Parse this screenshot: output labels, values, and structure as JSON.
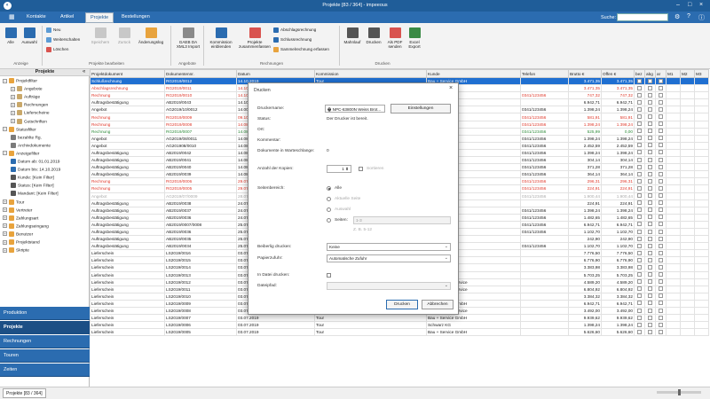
{
  "window": {
    "title": "Projekte [83 / 364] - impeeous"
  },
  "menu": {
    "tabs": [
      "Kontakte",
      "Artikel",
      "Projekte",
      "Bestellungen"
    ],
    "active_index": 2,
    "search_label": "Suche:"
  },
  "ribbon": {
    "buttons": {
      "alle": "Alle",
      "auswahl": "Auswahl",
      "neu": "Neu",
      "weiterschalten": "Weiterschalten",
      "loeschen": "Löschen",
      "speichern": "Speichern",
      "zurueck": "Zurück",
      "aenderungslog": "Änderungslog",
      "gaeb": "GAEB DA XML3 Import",
      "kommissionen": "Kommission einblenden",
      "projekte_zusammenfassen": "Projekte zusammenfassen",
      "abschlagsrechnung": "Abschlagsrechnung",
      "schlussrechnung": "Schlussrechnung",
      "sammelrechnung": "Sammelrechnung erfassen",
      "mahnlauf": "Mahnlauf",
      "drucken": "Drucken",
      "als_pdf": "Als PDF senden",
      "excel": "Excel Export"
    },
    "groups": {
      "anzeige": "Anzeige",
      "bearbeiten": "Projekte bearbeiten",
      "angebote": "Angebote",
      "rechnungen": "Rechnungen",
      "drucken": "Drucken"
    }
  },
  "sidebar": {
    "title": "Projekte",
    "tree": [
      {
        "label": "Projektfilter",
        "indent": 0,
        "toggle": "−",
        "icon": "folder"
      },
      {
        "label": "Angebote",
        "indent": 1,
        "toggle": "+",
        "icon": "doc"
      },
      {
        "label": "Aufträge",
        "indent": 1,
        "toggle": "+",
        "icon": "doc"
      },
      {
        "label": "Rechnungen",
        "indent": 1,
        "toggle": "+",
        "icon": "doc"
      },
      {
        "label": "Lieferscheine",
        "indent": 1,
        "toggle": "+",
        "icon": "doc"
      },
      {
        "label": "Gutschriften",
        "indent": 1,
        "toggle": "+",
        "icon": "doc"
      },
      {
        "label": "Statusfilter",
        "indent": 0,
        "toggle": "−",
        "icon": "folder"
      },
      {
        "label": "bezahlte Rg.",
        "indent": 1,
        "toggle": "",
        "icon": "check"
      },
      {
        "label": "Archivdokumente",
        "indent": 1,
        "toggle": "",
        "icon": "check"
      },
      {
        "label": "Anzeigefilter",
        "indent": 0,
        "toggle": "−",
        "icon": "folder"
      },
      {
        "label": "Datum ab: 01.01.2019",
        "indent": 1,
        "toggle": "",
        "icon": "cal"
      },
      {
        "label": "Datum bis: 14.10.2019",
        "indent": 1,
        "toggle": "",
        "icon": "cal"
      },
      {
        "label": "Kunde: [Kein Filter]",
        "indent": 1,
        "toggle": "",
        "icon": "user"
      },
      {
        "label": "Status: [Kein Filter]",
        "indent": 1,
        "toggle": "",
        "icon": "user"
      },
      {
        "label": "Mandant: [Kein Filter]",
        "indent": 1,
        "toggle": "",
        "icon": "user"
      },
      {
        "label": "Tour",
        "indent": 0,
        "toggle": "+",
        "icon": "folder"
      },
      {
        "label": "Vertreter",
        "indent": 0,
        "toggle": "+",
        "icon": "folder"
      },
      {
        "label": "Zahlungsart",
        "indent": 0,
        "toggle": "+",
        "icon": "folder"
      },
      {
        "label": "Zahlungseingang",
        "indent": 0,
        "toggle": "+",
        "icon": "folder"
      },
      {
        "label": "Benutzer",
        "indent": 0,
        "toggle": "+",
        "icon": "folder"
      },
      {
        "label": "Projektstand",
        "indent": 0,
        "toggle": "+",
        "icon": "folder"
      },
      {
        "label": "Skripte",
        "indent": 0,
        "toggle": "+",
        "icon": "folder"
      }
    ],
    "nav": [
      "Produktion",
      "Projekte",
      "Rechnungen",
      "Touren",
      "Zeiten"
    ],
    "nav_active": 1
  },
  "grid": {
    "columns": [
      "Projektdokument",
      "Dokumentennr.",
      "Datum",
      "Kommission",
      "Kunde",
      "Telefon",
      "Brutto €",
      "Offen €",
      "bez",
      "abg",
      "ar",
      "M1",
      "M2",
      "M3"
    ],
    "rows": [
      {
        "style": "sel",
        "cells": [
          "Schlußrechnung",
          "RG2019/0012",
          "14.10.2019",
          "Tour",
          "Bau + Service GmbH",
          "",
          "3.471,35",
          "3.471,35"
        ]
      },
      {
        "style": "red",
        "cells": [
          "Abschlagsrechnung",
          "RG2019/0011",
          "14.10.",
          "",
          "",
          "",
          "3.471,35",
          "3.471,35"
        ]
      },
      {
        "style": "red",
        "cells": [
          "Rechnung",
          "RG2019/0010",
          "14.10.",
          "",
          "mann",
          "0341/123456",
          "747,32",
          "747,32"
        ]
      },
      {
        "style": "",
        "cells": [
          "Auftragsbestätigung",
          "AB2019/0043",
          "14.10.",
          "",
          "",
          "",
          "6.942,71",
          "6.942,71"
        ]
      },
      {
        "style": "",
        "cells": [
          "Angebot",
          "AG2019/10/0012",
          "14.00.",
          "",
          "mann",
          "0341/123456",
          "1.398,24",
          "1.398,24"
        ]
      },
      {
        "style": "red",
        "cells": [
          "Rechnung",
          "RG2019/0009",
          "09.10.",
          "",
          "mann",
          "0341/123456",
          "581,91",
          "581,91"
        ]
      },
      {
        "style": "red",
        "cells": [
          "Rechnung",
          "RG2019/0008",
          "14.08.",
          "",
          "mann",
          "0341/123456",
          "1.398,24",
          "1.398,24"
        ]
      },
      {
        "style": "green",
        "cells": [
          "Rechnung",
          "RG2019/0007",
          "14.08.",
          "",
          "mann",
          "0341/123456",
          "525,99",
          "0,00"
        ]
      },
      {
        "style": "",
        "cells": [
          "Angebot",
          "AG2019/08/0011",
          "14.08.",
          "",
          "mann",
          "0341/123456",
          "1.398,24",
          "1.398,24"
        ]
      },
      {
        "style": "",
        "cells": [
          "Angebot",
          "AG201908/0010",
          "14.08.",
          "",
          "mann",
          "0341/123456",
          "2.452,59",
          "2.452,59"
        ]
      },
      {
        "style": "",
        "cells": [
          "Auftragsbestätigung",
          "AB2019/0042",
          "14.08.",
          "",
          "mann",
          "0341/123456",
          "1.398,24",
          "1.398,24"
        ]
      },
      {
        "style": "",
        "cells": [
          "Auftragsbestätigung",
          "AB2019/0041",
          "14.08.",
          "",
          "mann",
          "0341/123456",
          "304,14",
          "304,14"
        ]
      },
      {
        "style": "",
        "cells": [
          "Auftragsbestätigung",
          "AB2019/0040",
          "14.08.",
          "",
          "mann",
          "0341/123456",
          "371,28",
          "371,28"
        ]
      },
      {
        "style": "",
        "cells": [
          "Auftragsbestätigung",
          "AB2019/0039",
          "14.08.",
          "",
          "mann",
          "0341/123456",
          "364,14",
          "364,14"
        ]
      },
      {
        "style": "red",
        "cells": [
          "Rechnung",
          "RG2019/0006",
          "29.07.",
          "",
          "mann",
          "0341/123456",
          "296,31",
          "296,31"
        ]
      },
      {
        "style": "red",
        "cells": [
          "Rechnung",
          "RG2019/0005",
          "29.07.",
          "",
          "mann",
          "0341/123456",
          "224,91",
          "224,91"
        ]
      },
      {
        "style": "gray",
        "cells": [
          "Angebot",
          "AG2019/07/0009",
          "28.07.",
          "",
          "mann",
          "0341/123456",
          "1.900,44",
          "1.900,44"
        ]
      },
      {
        "style": "",
        "cells": [
          "Auftragsbestätigung",
          "AB2019/0038",
          "24.07.",
          "",
          "",
          "",
          "224,91",
          "224,91"
        ]
      },
      {
        "style": "",
        "cells": [
          "Auftragsbestätigung",
          "AB2019/0037",
          "24.07.",
          "",
          "mann",
          "0341/123456",
          "1.398,24",
          "1.398,24"
        ]
      },
      {
        "style": "",
        "cells": [
          "Auftragsbestätigung",
          "AB2019/0036",
          "24.07.",
          "",
          "mann",
          "0341/123456",
          "1.482,65",
          "1.482,65"
        ]
      },
      {
        "style": "",
        "cells": [
          "Auftragsbestätigung",
          "AB2019/0007/0008",
          "25.07.",
          "",
          "mann",
          "0341/123456",
          "6.942,71",
          "6.942,71"
        ]
      },
      {
        "style": "",
        "cells": [
          "Auftragsbestätigung",
          "AB2019/0036",
          "25.07.",
          "",
          "mann",
          "0341/123456",
          "1.102,70",
          "1.102,70"
        ]
      },
      {
        "style": "",
        "cells": [
          "Auftragsbestätigung",
          "AB2019/0035",
          "25.07.",
          "",
          "",
          "",
          "242,90",
          "242,90"
        ]
      },
      {
        "style": "",
        "cells": [
          "Auftragsbestätigung",
          "AB2019/0034",
          "25.07.",
          "",
          "mann",
          "0341/123456",
          "1.102,70",
          "1.102,70"
        ]
      },
      {
        "style": "",
        "cells": [
          "Lieferschein",
          "LS2019/0016",
          "03.07.",
          "",
          "",
          "",
          "7.776,50",
          "7.776,50"
        ]
      },
      {
        "style": "",
        "cells": [
          "Lieferschein",
          "LS2019/0015",
          "03.07.",
          "",
          "",
          "",
          "6.776,90",
          "6.776,90"
        ]
      },
      {
        "style": "",
        "cells": [
          "Lieferschein",
          "LS2019/0014",
          "03.07.",
          "",
          "",
          "",
          "3.383,98",
          "3.383,98"
        ]
      },
      {
        "style": "",
        "cells": [
          "Lieferschein",
          "LS2019/0013",
          "03.07.",
          "",
          "",
          "",
          "5.703,25",
          "5.703,25"
        ]
      },
      {
        "style": "",
        "cells": [
          "Lieferschein",
          "LS2019/0012",
          "03.07.2019",
          "Tour",
          "Dessauer Bauservice",
          "",
          "4.589,20",
          "4.589,20"
        ]
      },
      {
        "style": "",
        "cells": [
          "Lieferschein",
          "LS2019/0011",
          "03.07.2019",
          "Tour",
          "Dessauer Bauservice",
          "",
          "6.804,92",
          "6.804,92"
        ]
      },
      {
        "style": "",
        "cells": [
          "Lieferschein",
          "LS2019/0010",
          "03.07.2019",
          "Tour",
          "Müller & Partner",
          "",
          "3.384,32",
          "3.384,32"
        ]
      },
      {
        "style": "",
        "cells": [
          "Lieferschein",
          "LS2019/0009",
          "03.07.2019",
          "Tour",
          "Bau + Service GmbH",
          "",
          "6.942,71",
          "6.942,71"
        ]
      },
      {
        "style": "",
        "cells": [
          "Lieferschein",
          "LS2019/0008",
          "03.07.2019",
          "Tour",
          "Dessauer Bauservice",
          "",
          "3.492,00",
          "3.492,00"
        ]
      },
      {
        "style": "",
        "cells": [
          "Lieferschein",
          "LS2019/0007",
          "03.07.2019",
          "Tour",
          "Bau + Service GmbH",
          "",
          "9.939,62",
          "9.939,62"
        ]
      },
      {
        "style": "",
        "cells": [
          "Lieferschein",
          "LS2019/0006",
          "03.07.2019",
          "Tour",
          "Schwarz KG",
          "",
          "1.398,24",
          "1.398,24"
        ]
      },
      {
        "style": "",
        "cells": [
          "Lieferschein",
          "LS2019/0005",
          "03.07.2019",
          "Tour",
          "Bau + Service GmbH",
          "",
          "5.626,60",
          "5.626,60"
        ]
      }
    ]
  },
  "dialog": {
    "title": "Drucken",
    "close": "×",
    "drucker_label": "Druckername:",
    "drucker_value": "NPC-63800N Weiss Brot...",
    "einstellungen": "Einstellungen",
    "status_label": "Status:",
    "status_value": "Der Drucker ist bereit.",
    "ort_label": "Ort:",
    "kommentar_label": "Kommentar:",
    "warteschlange_label": "Dokumente in Warteschlange:",
    "warteschlange_value": "0",
    "kopien_label": "Anzahl der Kopien:",
    "kopien_value": "1",
    "sortieren": "Sortieren",
    "seitenbereich_label": "Seitenbereich:",
    "alle": "Alle",
    "aktuelle_seite": "Aktuelle Seite",
    "auswahl": "Auswahl",
    "seiten": "Seiten:",
    "seiten_value": "1-3",
    "seiten_hint": "Z. B. 5-12",
    "beiberlig_label": "Beiberlig drucken:",
    "beiberlig_value": "Keine",
    "papierzufuhr_label": "Papierzufuhr:",
    "papierzufuhr_value": "Automatische Zufuhr",
    "in_datei_label": "In Datei drucken:",
    "dateipfad_label": "Dateipfad:",
    "drucken_btn": "Drucken",
    "abbrechen_btn": "Abbrechen"
  },
  "status": {
    "tab": "Projekte [83 / 364]"
  },
  "colors": {
    "brand": "#2b6cb0",
    "selected_row": "#1f6fd1",
    "red_text": "#e0392b",
    "green_text": "#2e8b3a"
  }
}
